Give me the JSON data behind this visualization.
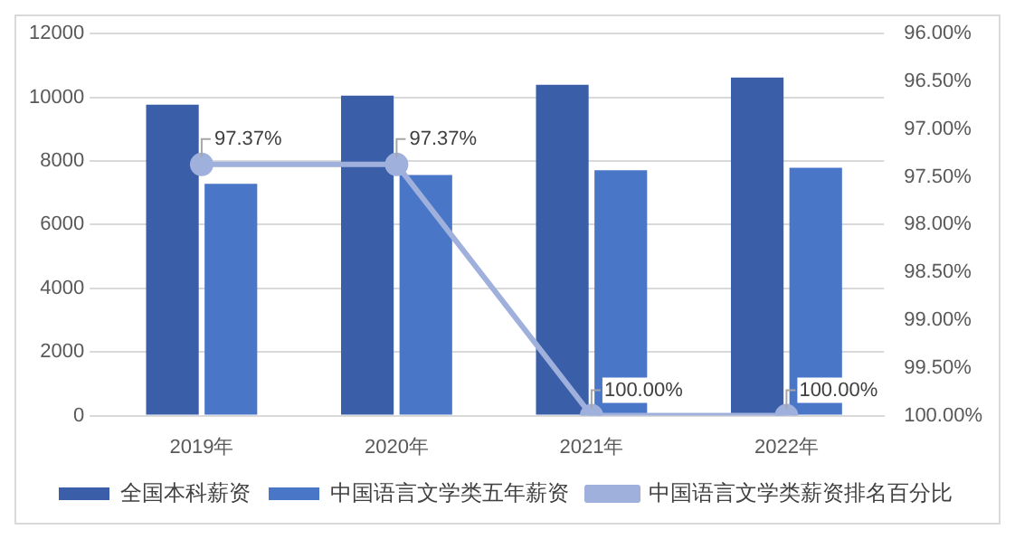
{
  "chart_data": {
    "type": "bar",
    "categories": [
      "2019年",
      "2020年",
      "2021年",
      "2022年"
    ],
    "series": [
      {
        "name": "全国本科薪资",
        "color": "#3a5fa8",
        "values": [
          9770,
          10050,
          10390,
          10620
        ]
      },
      {
        "name": "中国语言文学类五年薪资",
        "color": "#4a76c8",
        "values": [
          7280,
          7560,
          7710,
          7790
        ]
      },
      {
        "name": "中国语言文学类薪资排名百分比",
        "type": "line",
        "axis": "y2",
        "color": "#9fb0dc",
        "marker": "circle",
        "values": [
          97.37,
          97.37,
          100,
          100
        ],
        "value_labels": [
          "97.37%",
          "97.37%",
          "100.00%",
          "100.00%"
        ]
      }
    ],
    "ylim": [
      0,
      12000
    ],
    "yticks": [
      0,
      2000,
      4000,
      6000,
      8000,
      10000,
      12000
    ],
    "y2lim": [
      100,
      96
    ],
    "y2ticks": [
      {
        "value": 96,
        "label": "96.00%"
      },
      {
        "value": 96.5,
        "label": "96.50%"
      },
      {
        "value": 97,
        "label": "97.00%"
      },
      {
        "value": 97.5,
        "label": "97.50%"
      },
      {
        "value": 98,
        "label": "98.00%"
      },
      {
        "value": 98.5,
        "label": "98.50%"
      },
      {
        "value": 99,
        "label": "99.00%"
      },
      {
        "value": 99.5,
        "label": "99.50%"
      },
      {
        "value": 100,
        "label": "100.00%"
      }
    ],
    "grid": "y",
    "legend": "bottom"
  }
}
